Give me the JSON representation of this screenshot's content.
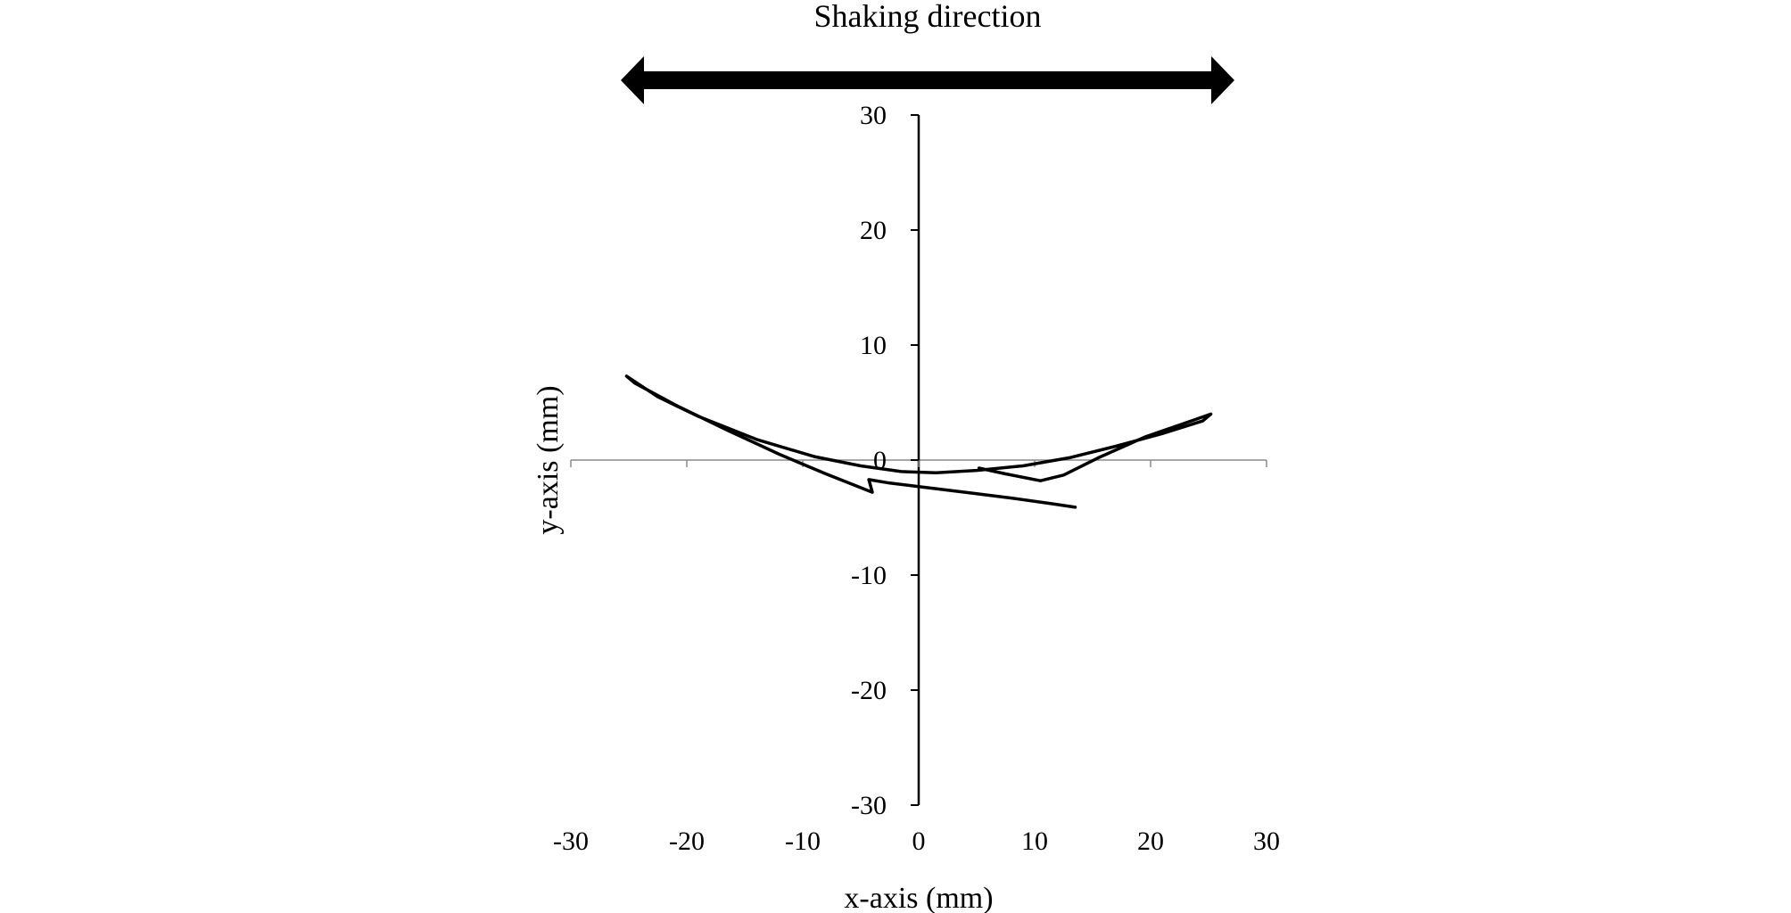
{
  "chart_data": {
    "type": "line",
    "title": "",
    "annotation": "Shaking direction",
    "xlabel": "x-axis (mm)",
    "ylabel": "y-axis (mm)",
    "xlim": [
      -30,
      30
    ],
    "ylim": [
      -30,
      30
    ],
    "xticks": [
      -30,
      -20,
      -10,
      0,
      10,
      20,
      30
    ],
    "yticks": [
      30,
      20,
      10,
      0,
      -10,
      -20,
      -30
    ],
    "xtick_labels": [
      "-30",
      "-20",
      "-10",
      "0",
      "10",
      "20",
      "30"
    ],
    "ytick_labels": [
      "30",
      "20",
      "10",
      "0",
      "-10",
      "-20",
      "-30"
    ],
    "grid": false,
    "legend": "none",
    "line_color": "#000000",
    "series": [
      {
        "x": [
          5.2,
          7.5,
          10.5,
          12.5,
          15.5,
          19.5,
          23.5,
          25.2,
          24.5,
          21.0,
          17.0,
          13.0,
          9.0,
          5.0,
          1.5,
          -1.5,
          -5.0,
          -9.0,
          -14.0,
          -19.0,
          -22.5,
          -25.2,
          -24.5,
          -21.0,
          -16.5,
          -12.0,
          -8.0,
          -5.5,
          -4.0,
          -4.3,
          -2.5,
          0.0,
          4.0,
          8.0,
          11.5,
          13.5
        ],
        "y": [
          -0.7,
          -1.2,
          -1.8,
          -1.3,
          0.2,
          2.0,
          3.4,
          4.0,
          3.4,
          2.3,
          1.2,
          0.2,
          -0.5,
          -0.9,
          -1.1,
          -1.0,
          -0.5,
          0.3,
          1.8,
          3.8,
          5.5,
          7.3,
          6.7,
          4.8,
          2.6,
          0.5,
          -1.2,
          -2.2,
          -2.8,
          -1.7,
          -2.0,
          -2.3,
          -2.8,
          -3.3,
          -3.8,
          -4.1
        ]
      }
    ]
  }
}
